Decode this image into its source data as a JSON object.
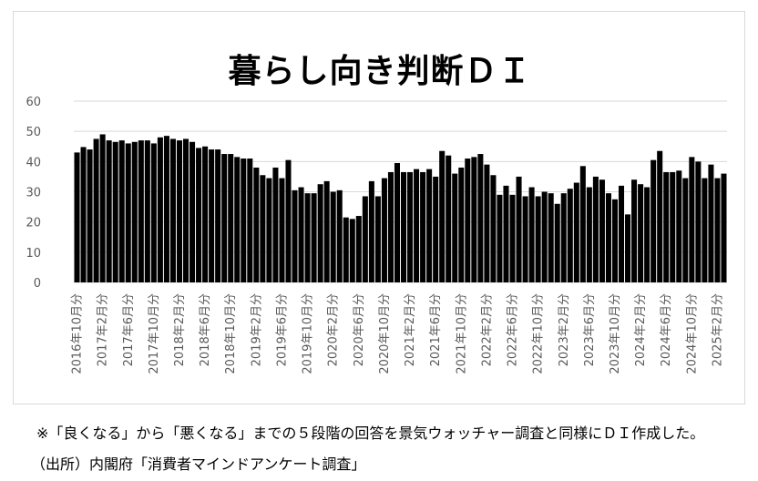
{
  "chart_data": {
    "type": "bar",
    "title": "暮らし向き判断ＤＩ",
    "ylim": [
      0,
      60
    ],
    "yticks": [
      0,
      10,
      20,
      30,
      40,
      50,
      60
    ],
    "grid": true,
    "bar_color": "#000000",
    "grid_color": "#d9d9d9",
    "start_month": "2016-10",
    "tick_labels": [
      "2016年10月分",
      "2017年2月分",
      "2017年6月分",
      "2017年10月分",
      "2018年2月分",
      "2018年6月分",
      "2018年10月分",
      "2019年2月分",
      "2019年6月分",
      "2019年10月分",
      "2020年2月分",
      "2020年6月分",
      "2020年10月分",
      "2021年2月分",
      "2021年6月分",
      "2021年10月分",
      "2022年2月分",
      "2022年6月分",
      "2022年10月分",
      "2023年2月分",
      "2023年6月分",
      "2023年10月分",
      "2024年2月分",
      "2024年6月分",
      "2024年10月分",
      "2025年2月分"
    ],
    "values": [
      43,
      44.8,
      44,
      47.5,
      49,
      47,
      46.5,
      47,
      46,
      46.5,
      47,
      47,
      46,
      48,
      48.5,
      47.5,
      47,
      47.5,
      46.5,
      44.5,
      45,
      44,
      44,
      42.5,
      42.5,
      41.5,
      41,
      41,
      38,
      35.5,
      34.5,
      38,
      34.5,
      40.5,
      30.5,
      31.5,
      29.5,
      29.5,
      32.5,
      33.5,
      30,
      30.5,
      21.5,
      21,
      22,
      28.5,
      33.5,
      28.5,
      34.5,
      36.5,
      39.5,
      36.5,
      36.5,
      37.5,
      36.5,
      37.5,
      35,
      43.5,
      42,
      36,
      38,
      41,
      41.5,
      42.5,
      39,
      35.5,
      29,
      32,
      29,
      35,
      28.5,
      31.5,
      28.5,
      30,
      29.5,
      26,
      29.5,
      31,
      33,
      38.5,
      31.5,
      35,
      34,
      29.5,
      27.5,
      32,
      22.5,
      34,
      32.5,
      31.5,
      40.5,
      43.5,
      36.5,
      36.5,
      37,
      34.5,
      41.5,
      40,
      34.5,
      39,
      34.5,
      36
    ]
  },
  "footnotes": {
    "note": "※「良くなる」から「悪くなる」までの５段階の回答を景気ウォッチャー調査と同様にＤＩ作成した。",
    "source": "（出所）内閣府「消費者マインドアンケート調査」"
  }
}
